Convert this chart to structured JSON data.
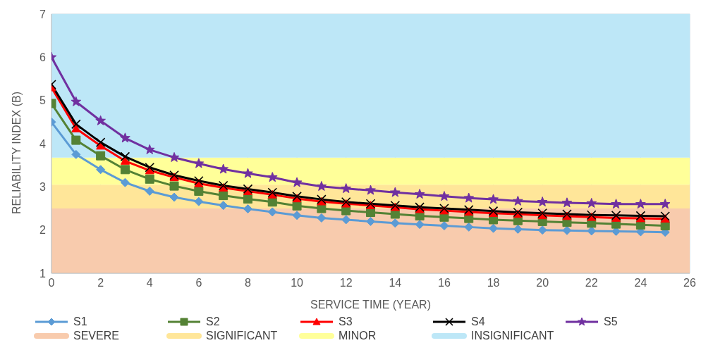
{
  "chart_data": {
    "type": "line",
    "xlabel": "SERVICE TIME (YEAR)",
    "ylabel": "RELIABILITY INDEX (Β)",
    "x": [
      0,
      1,
      2,
      3,
      4,
      5,
      6,
      7,
      8,
      9,
      10,
      11,
      12,
      13,
      14,
      15,
      16,
      17,
      18,
      19,
      20,
      21,
      22,
      23,
      24,
      25
    ],
    "series": [
      {
        "name": "S1",
        "color": "#5b9bd5",
        "marker": "diamond",
        "values": [
          4.5,
          3.75,
          3.4,
          3.1,
          2.9,
          2.76,
          2.66,
          2.57,
          2.49,
          2.42,
          2.34,
          2.28,
          2.24,
          2.2,
          2.16,
          2.13,
          2.1,
          2.07,
          2.04,
          2.02,
          2.0,
          1.99,
          1.98,
          1.97,
          1.96,
          1.95
        ]
      },
      {
        "name": "S2",
        "color": "#548235",
        "marker": "square",
        "values": [
          4.93,
          4.08,
          3.72,
          3.4,
          3.18,
          3.02,
          2.9,
          2.8,
          2.72,
          2.65,
          2.56,
          2.5,
          2.45,
          2.41,
          2.37,
          2.33,
          2.3,
          2.27,
          2.24,
          2.22,
          2.2,
          2.18,
          2.16,
          2.14,
          2.12,
          2.1
        ]
      },
      {
        "name": "S3",
        "color": "#ff0000",
        "marker": "triangle",
        "values": [
          5.3,
          4.35,
          3.95,
          3.6,
          3.38,
          3.22,
          3.08,
          2.98,
          2.9,
          2.82,
          2.73,
          2.66,
          2.61,
          2.57,
          2.53,
          2.48,
          2.45,
          2.42,
          2.39,
          2.37,
          2.34,
          2.32,
          2.3,
          2.28,
          2.27,
          2.26
        ]
      },
      {
        "name": "S4",
        "color": "#000000",
        "marker": "cross",
        "values": [
          5.37,
          4.45,
          4.03,
          3.7,
          3.45,
          3.27,
          3.14,
          3.03,
          2.95,
          2.87,
          2.78,
          2.71,
          2.65,
          2.61,
          2.57,
          2.53,
          2.5,
          2.47,
          2.44,
          2.41,
          2.39,
          2.37,
          2.35,
          2.34,
          2.33,
          2.32
        ]
      },
      {
        "name": "S5",
        "color": "#7030a0",
        "marker": "star",
        "values": [
          6.0,
          4.97,
          4.53,
          4.13,
          3.86,
          3.68,
          3.54,
          3.41,
          3.31,
          3.22,
          3.1,
          3.01,
          2.96,
          2.92,
          2.87,
          2.83,
          2.78,
          2.74,
          2.71,
          2.67,
          2.65,
          2.63,
          2.62,
          2.6,
          2.6,
          2.6
        ]
      }
    ],
    "bands": [
      {
        "axis": "y",
        "from": 1,
        "to": 2.5,
        "label": "SEVERE",
        "color": "#f8cbad"
      },
      {
        "axis": "y",
        "from": 2.5,
        "to": 3.05,
        "label": "SIGNIFICANT",
        "color": "#ffe699"
      },
      {
        "axis": "y",
        "from": 3.05,
        "to": 3.68,
        "label": "MINOR",
        "color": "#ffff99"
      },
      {
        "axis": "y",
        "from": 3.68,
        "to": 7,
        "label": "INSIGNIFICANT",
        "color": "#bde7f7"
      }
    ],
    "xlim": [
      0,
      26
    ],
    "xticks": [
      0,
      2,
      4,
      6,
      8,
      10,
      12,
      14,
      16,
      18,
      20,
      22,
      24,
      26
    ],
    "ylim": [
      1,
      7
    ],
    "yticks": [
      1,
      2,
      3,
      4,
      5,
      6,
      7
    ],
    "grid": true,
    "legend": "bottom",
    "line_style": "solid"
  }
}
